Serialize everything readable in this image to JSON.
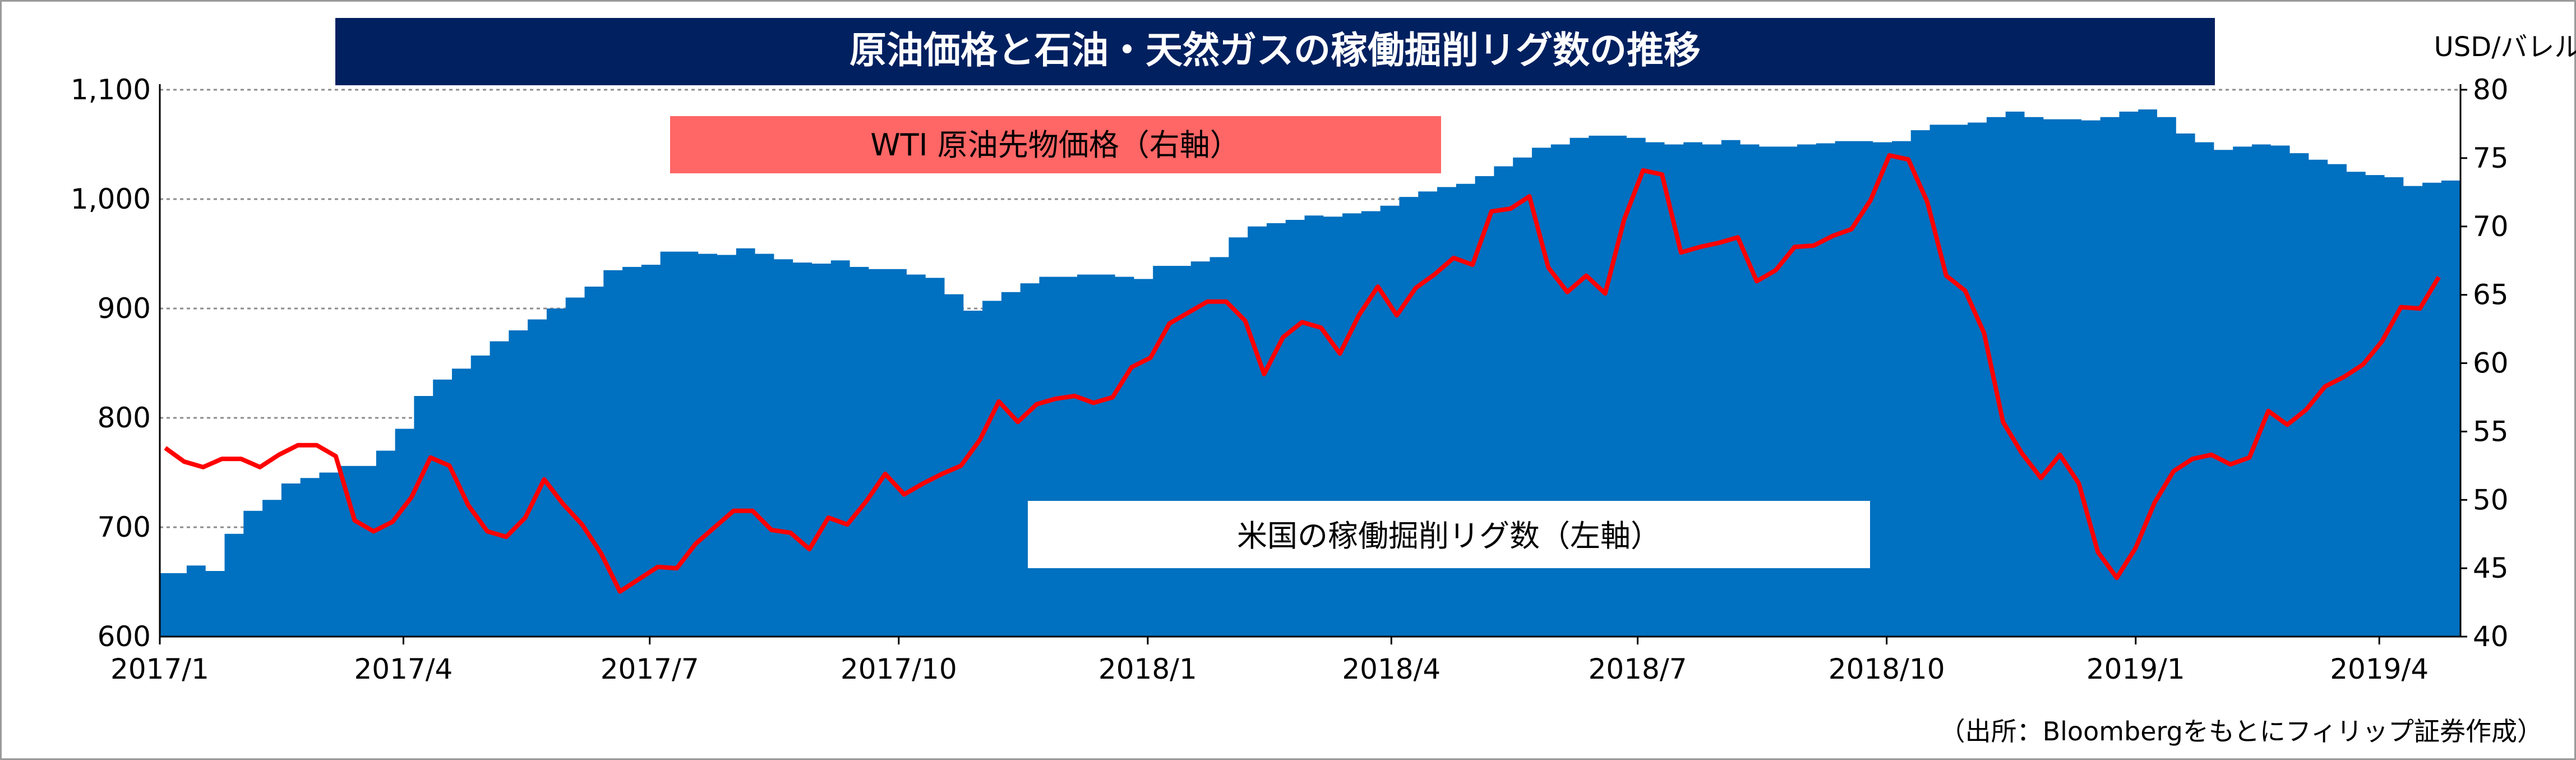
{
  "chart_data": {
    "type": "area+line",
    "title": "原油価格と石油・天然ガスの稼働掘削リグ数の推移",
    "right_unit": "USD/バレル",
    "source": "（出所：Bloombergをもとにフィリップ証券作成）",
    "x_ticks": [
      "2017/1",
      "2017/4",
      "2017/7",
      "2017/10",
      "2018/1",
      "2018/4",
      "2018/7",
      "2018/10",
      "2019/1",
      "2019/4"
    ],
    "left_axis": {
      "min": 600,
      "max": 1100,
      "ticks": [
        "600",
        "700",
        "800",
        "900",
        "1,000",
        "1,100"
      ]
    },
    "right_axis": {
      "min": 40,
      "max": 80,
      "ticks": [
        "40",
        "45",
        "50",
        "55",
        "60",
        "65",
        "70",
        "75",
        "80"
      ]
    },
    "series": [
      {
        "name": "米国の稼働掘削リグ数（左軸）",
        "axis": "left",
        "kind": "area",
        "color": "#0070C0",
        "label_bg": "#FFFFFF",
        "x": [
          "2017-01-06",
          "2017-01-13",
          "2017-01-20",
          "2017-01-27",
          "2017-02-03",
          "2017-02-10",
          "2017-02-17",
          "2017-02-24",
          "2017-03-03",
          "2017-03-10",
          "2017-03-17",
          "2017-03-24",
          "2017-03-31",
          "2017-04-07",
          "2017-04-14",
          "2017-04-21",
          "2017-04-28",
          "2017-05-05",
          "2017-05-12",
          "2017-05-19",
          "2017-05-26",
          "2017-06-02",
          "2017-06-09",
          "2017-06-16",
          "2017-06-23",
          "2017-06-30",
          "2017-07-07",
          "2017-07-14",
          "2017-07-21",
          "2017-07-28",
          "2017-08-04",
          "2017-08-11",
          "2017-08-18",
          "2017-08-25",
          "2017-09-01",
          "2017-09-08",
          "2017-09-15",
          "2017-09-22",
          "2017-09-29",
          "2017-10-06",
          "2017-10-13",
          "2017-10-20",
          "2017-10-27",
          "2017-11-03",
          "2017-11-10",
          "2017-11-17",
          "2017-11-24",
          "2017-12-01",
          "2017-12-08",
          "2017-12-15",
          "2017-12-22",
          "2017-12-29",
          "2018-01-05",
          "2018-01-12",
          "2018-01-19",
          "2018-01-26",
          "2018-02-02",
          "2018-02-09",
          "2018-02-16",
          "2018-02-23",
          "2018-03-02",
          "2018-03-09",
          "2018-03-16",
          "2018-03-23",
          "2018-03-30",
          "2018-04-06",
          "2018-04-13",
          "2018-04-20",
          "2018-04-27",
          "2018-05-04",
          "2018-05-11",
          "2018-05-18",
          "2018-05-25",
          "2018-06-01",
          "2018-06-08",
          "2018-06-15",
          "2018-06-22",
          "2018-06-29",
          "2018-07-06",
          "2018-07-13",
          "2018-07-20",
          "2018-07-27",
          "2018-08-03",
          "2018-08-10",
          "2018-08-17",
          "2018-08-24",
          "2018-08-31",
          "2018-09-07",
          "2018-09-14",
          "2018-09-21",
          "2018-09-28",
          "2018-10-05",
          "2018-10-12",
          "2018-10-19",
          "2018-10-26",
          "2018-11-02",
          "2018-11-09",
          "2018-11-16",
          "2018-11-23",
          "2018-11-30",
          "2018-12-07",
          "2018-12-14",
          "2018-12-21",
          "2018-12-28",
          "2019-01-04",
          "2019-01-11",
          "2019-01-18",
          "2019-01-25",
          "2019-02-01",
          "2019-02-08",
          "2019-02-15",
          "2019-02-22",
          "2019-03-01",
          "2019-03-08",
          "2019-03-15",
          "2019-03-22",
          "2019-03-29",
          "2019-04-05",
          "2019-04-12",
          "2019-04-19",
          "2019-04-26"
        ],
        "values": [
          658,
          665,
          660,
          694,
          715,
          725,
          740,
          745,
          750,
          756,
          756,
          770,
          790,
          820,
          835,
          845,
          857,
          870,
          880,
          890,
          900,
          910,
          920,
          935,
          938,
          940,
          952,
          952,
          950,
          949,
          955,
          950,
          945,
          942,
          941,
          944,
          938,
          936,
          936,
          931,
          928,
          913,
          898,
          907,
          915,
          923,
          929,
          929,
          931,
          931,
          929,
          927,
          939,
          939,
          943,
          947,
          965,
          975,
          978,
          981,
          985,
          984,
          987,
          989,
          994,
          1002,
          1007,
          1011,
          1014,
          1021,
          1030,
          1038,
          1047,
          1050,
          1056,
          1058,
          1058,
          1056,
          1052,
          1050,
          1052,
          1050,
          1054,
          1050,
          1048,
          1048,
          1050,
          1051,
          1053,
          1053,
          1052,
          1053,
          1063,
          1068,
          1068,
          1070,
          1075,
          1080,
          1075,
          1073,
          1073,
          1072,
          1075,
          1080,
          1082,
          1075,
          1060,
          1052,
          1045,
          1048,
          1050,
          1049,
          1042,
          1036,
          1032,
          1025,
          1022,
          1020,
          1012,
          1015,
          1017
        ]
      },
      {
        "name": "WTI 原油先物価格（右軸）",
        "axis": "right",
        "kind": "line",
        "color": "#FF0000",
        "label_bg": "#FF6666",
        "x": [
          "2017-01-03",
          "2017-01-10",
          "2017-01-17",
          "2017-01-24",
          "2017-01-31",
          "2017-02-07",
          "2017-02-14",
          "2017-02-21",
          "2017-02-28",
          "2017-03-07",
          "2017-03-14",
          "2017-03-21",
          "2017-03-28",
          "2017-04-04",
          "2017-04-11",
          "2017-04-18",
          "2017-04-25",
          "2017-05-02",
          "2017-05-09",
          "2017-05-16",
          "2017-05-23",
          "2017-05-30",
          "2017-06-06",
          "2017-06-13",
          "2017-06-20",
          "2017-06-27",
          "2017-07-04",
          "2017-07-11",
          "2017-07-18",
          "2017-07-25",
          "2017-08-01",
          "2017-08-08",
          "2017-08-15",
          "2017-08-22",
          "2017-08-29",
          "2017-09-05",
          "2017-09-12",
          "2017-09-19",
          "2017-09-26",
          "2017-10-03",
          "2017-10-10",
          "2017-10-17",
          "2017-10-24",
          "2017-10-31",
          "2017-11-07",
          "2017-11-14",
          "2017-11-21",
          "2017-11-28",
          "2017-12-05",
          "2017-12-12",
          "2017-12-19",
          "2017-12-26",
          "2018-01-02",
          "2018-01-09",
          "2018-01-16",
          "2018-01-23",
          "2018-01-30",
          "2018-02-06",
          "2018-02-13",
          "2018-02-20",
          "2018-02-27",
          "2018-03-06",
          "2018-03-13",
          "2018-03-20",
          "2018-03-27",
          "2018-04-03",
          "2018-04-10",
          "2018-04-17",
          "2018-04-24",
          "2018-05-01",
          "2018-05-08",
          "2018-05-15",
          "2018-05-22",
          "2018-05-29",
          "2018-06-05",
          "2018-06-12",
          "2018-06-19",
          "2018-06-26",
          "2018-07-03",
          "2018-07-10",
          "2018-07-17",
          "2018-07-24",
          "2018-07-31",
          "2018-08-07",
          "2018-08-14",
          "2018-08-21",
          "2018-08-28",
          "2018-09-04",
          "2018-09-11",
          "2018-09-18",
          "2018-09-25",
          "2018-10-02",
          "2018-10-09",
          "2018-10-16",
          "2018-10-23",
          "2018-10-30",
          "2018-11-06",
          "2018-11-13",
          "2018-11-20",
          "2018-11-27",
          "2018-12-04",
          "2018-12-11",
          "2018-12-18",
          "2018-12-25",
          "2019-01-01",
          "2019-01-08",
          "2019-01-15",
          "2019-01-22",
          "2019-01-29",
          "2019-02-05",
          "2019-02-12",
          "2019-02-19",
          "2019-02-26",
          "2019-03-05",
          "2019-03-12",
          "2019-03-19",
          "2019-03-26",
          "2019-04-02",
          "2019-04-09",
          "2019-04-16",
          "2019-04-23"
        ],
        "values": [
          53.8,
          52.8,
          52.4,
          53.0,
          53.0,
          52.4,
          53.3,
          54.0,
          54.0,
          53.2,
          48.5,
          47.7,
          48.4,
          50.2,
          53.1,
          52.5,
          49.6,
          47.7,
          47.3,
          48.7,
          51.5,
          49.7,
          48.2,
          46.1,
          43.3,
          44.2,
          45.1,
          45.0,
          46.8,
          48.0,
          49.2,
          49.2,
          47.8,
          47.6,
          46.4,
          48.7,
          48.2,
          49.9,
          51.9,
          50.4,
          51.2,
          51.9,
          52.5,
          54.4,
          57.2,
          55.7,
          57.0,
          57.4,
          57.6,
          57.1,
          57.5,
          59.7,
          60.4,
          62.9,
          63.7,
          64.5,
          64.5,
          63.1,
          59.2,
          61.9,
          63.0,
          62.6,
          60.7,
          63.5,
          65.6,
          63.5,
          65.5,
          66.5,
          67.7,
          67.2,
          71.1,
          71.3,
          72.2,
          67.0,
          65.2,
          66.4,
          65.1,
          70.5,
          74.1,
          73.8,
          68.1,
          68.5,
          68.8,
          69.2,
          66.0,
          66.8,
          68.5,
          68.6,
          69.3,
          69.8,
          71.9,
          75.2,
          74.9,
          71.8,
          66.4,
          65.3,
          62.2,
          55.7,
          53.4,
          51.6,
          53.3,
          51.2,
          46.2,
          44.3,
          46.5,
          49.8,
          52.1,
          53.0,
          53.3,
          52.6,
          53.1,
          56.5,
          55.5,
          56.6,
          58.3,
          59.0,
          59.9,
          61.6,
          64.1,
          64.0,
          66.3
        ]
      }
    ]
  }
}
